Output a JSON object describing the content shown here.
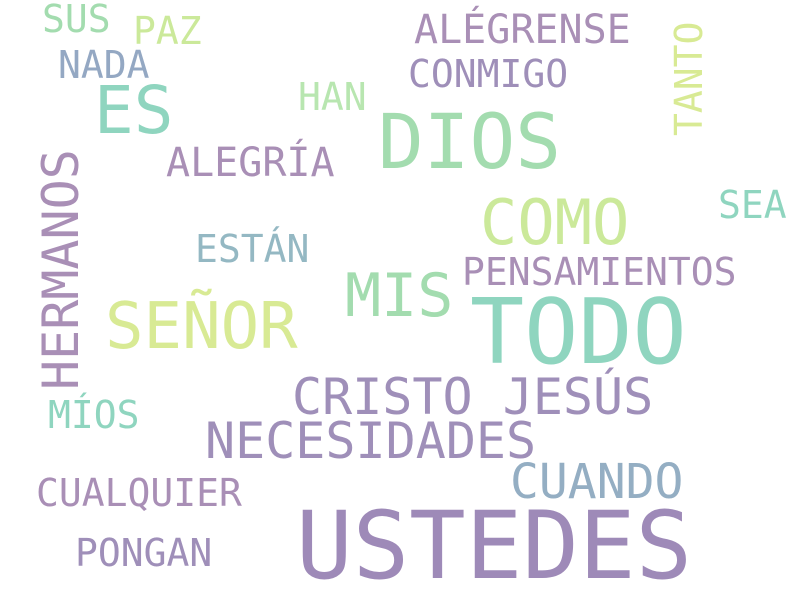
{
  "words": [
    {
      "text": "USTEDES",
      "color": "#9e8ab8"
    },
    {
      "text": "TODO",
      "color": "#8fd5bf"
    },
    {
      "text": "DIOS",
      "color": "#a3dcaf"
    },
    {
      "text": "CRISTO JESÚS",
      "color": "#9f8fb9"
    },
    {
      "text": "SEÑOR",
      "color": "#d8ea94"
    },
    {
      "text": "NECESIDADES",
      "color": "#9f8fb9"
    },
    {
      "text": "HERMANOS",
      "color": "#a98fb6"
    },
    {
      "text": "COMO",
      "color": "#cbe99a"
    },
    {
      "text": "ES",
      "color": "#8fd5bf"
    },
    {
      "text": "MIS",
      "color": "#a3dcaf"
    },
    {
      "text": "CUANDO",
      "color": "#94aec3"
    },
    {
      "text": "PENSAMIENTOS",
      "color": "#a98fb6"
    },
    {
      "text": "ALÉGRENSE",
      "color": "#a98fb6"
    },
    {
      "text": "ALEGRÍA",
      "color": "#a98fb6"
    },
    {
      "text": "CUALQUIER",
      "color": "#a98fb6"
    },
    {
      "text": "CONMIGO",
      "color": "#9f8fb9"
    },
    {
      "text": "ESTÁN",
      "color": "#94b8c3"
    },
    {
      "text": "PONGAN",
      "color": "#9f8fb9"
    },
    {
      "text": "MÍOS",
      "color": "#8fd5bf"
    },
    {
      "text": "TANTO",
      "color": "#d8ea94"
    },
    {
      "text": "SEA",
      "color": "#8fd5bf"
    },
    {
      "text": "NADA",
      "color": "#94a8c3"
    },
    {
      "text": "HAN",
      "color": "#b8e6b0"
    },
    {
      "text": "PAZ",
      "color": "#cbe99a"
    },
    {
      "text": "SUS",
      "color": "#a3dcaf"
    }
  ]
}
